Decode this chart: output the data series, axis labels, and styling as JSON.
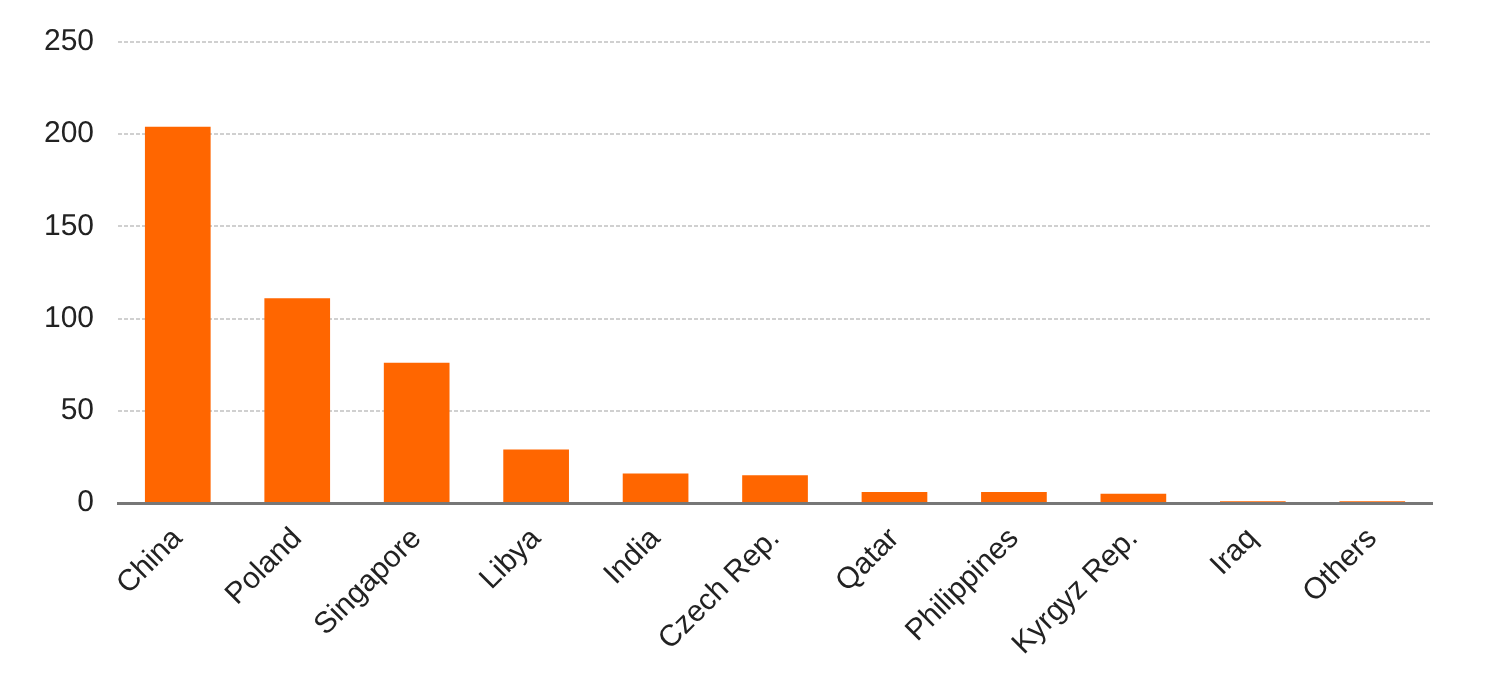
{
  "chart_data": {
    "type": "bar",
    "categories": [
      "China",
      "Poland",
      "Singapore",
      "Libya",
      "India",
      "Czech Rep.",
      "Qatar",
      "Philippines",
      "Kyrgyz Rep.",
      "Iraq",
      "Others"
    ],
    "values": [
      204,
      111,
      76,
      29,
      16,
      15,
      6,
      6,
      5,
      1,
      1
    ],
    "color": "#ff6600",
    "ylim": [
      0,
      250
    ],
    "yticks": [
      0,
      50,
      100,
      150,
      200,
      250
    ],
    "grid": "y",
    "legend": false
  }
}
